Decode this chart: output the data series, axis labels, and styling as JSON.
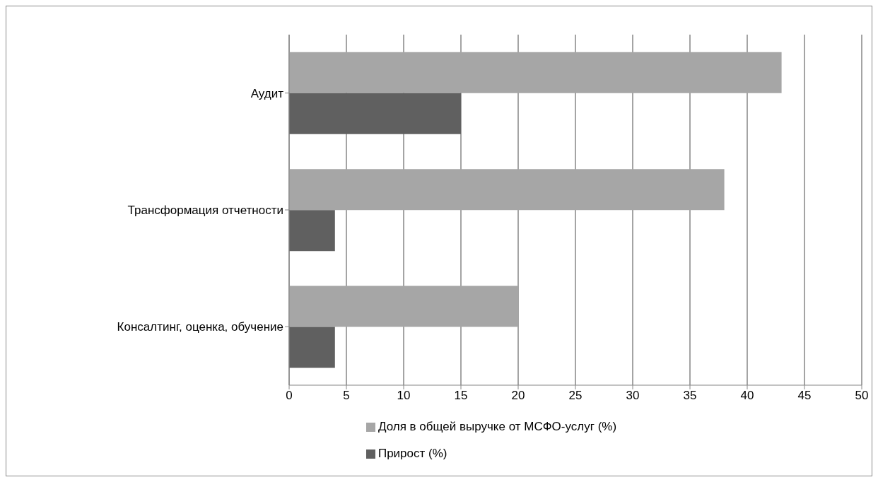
{
  "chart_data": {
    "type": "bar",
    "orientation": "horizontal",
    "categories": [
      "Аудит",
      "Трансформация отчетности",
      "Консалтинг, оценка, обучение"
    ],
    "series": [
      {
        "name": "Доля в общей выручке от МСФО-услуг (%)",
        "color": "#a6a6a6",
        "values": [
          43,
          38,
          20
        ]
      },
      {
        "name": "Прирост (%)",
        "color": "#606060",
        "values": [
          15,
          4,
          4
        ]
      }
    ],
    "xlim": [
      0,
      50
    ],
    "xticks": [
      0,
      5,
      10,
      15,
      20,
      25,
      30,
      35,
      40,
      45,
      50
    ],
    "grid": "x",
    "legend": "bottom"
  }
}
